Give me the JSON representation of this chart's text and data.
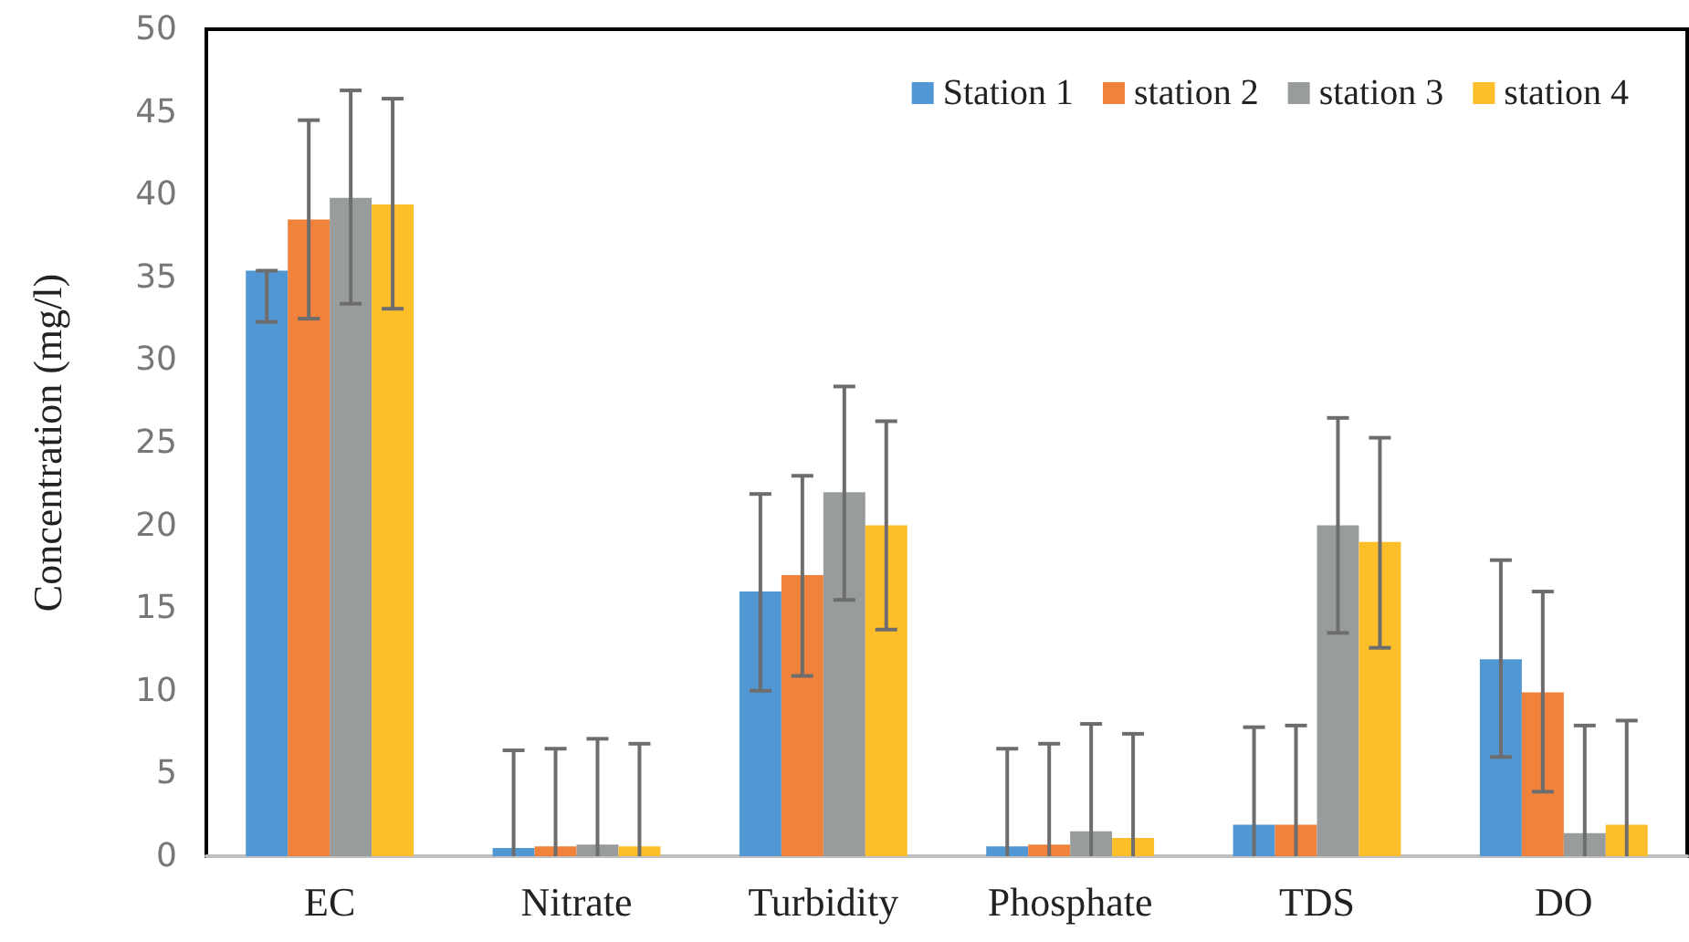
{
  "chart_data": {
    "type": "bar",
    "ylabel": "Concentration (mg/l)",
    "categories": [
      "EC",
      "Nitrate",
      "Turbidity",
      "Phosphate",
      "TDS",
      "DO"
    ],
    "series": [
      {
        "name": "Station 1",
        "color": "#5097d3",
        "values": [
          35.4,
          0.5,
          16.0,
          0.6,
          1.9,
          11.9
        ],
        "errors": [
          [
            32.3,
            35.4
          ],
          [
            0,
            6.4
          ],
          [
            10.0,
            21.9
          ],
          [
            0,
            6.5
          ],
          [
            0,
            7.8
          ],
          [
            6.0,
            17.9
          ]
        ]
      },
      {
        "name": "station 2",
        "color": "#f0823b",
        "values": [
          38.5,
          0.6,
          17.0,
          0.7,
          1.9,
          9.9
        ],
        "errors": [
          [
            32.5,
            44.5
          ],
          [
            0,
            6.5
          ],
          [
            10.9,
            23.0
          ],
          [
            0,
            6.8
          ],
          [
            0,
            7.9
          ],
          [
            3.9,
            16.0
          ]
        ]
      },
      {
        "name": "station 3",
        "color": "#999c9d",
        "values": [
          39.8,
          0.7,
          22.0,
          1.5,
          20.0,
          1.4
        ],
        "errors": [
          [
            33.4,
            46.3
          ],
          [
            0,
            7.1
          ],
          [
            15.5,
            28.4
          ],
          [
            0,
            8.0
          ],
          [
            13.5,
            26.5
          ],
          [
            0,
            7.9
          ]
        ]
      },
      {
        "name": "station 4",
        "color": "#fcbf2a",
        "values": [
          39.4,
          0.6,
          20.0,
          1.1,
          19.0,
          1.9
        ],
        "errors": [
          [
            33.1,
            45.8
          ],
          [
            0,
            6.8
          ],
          [
            13.7,
            26.3
          ],
          [
            0,
            7.4
          ],
          [
            12.6,
            25.3
          ],
          [
            0,
            8.2
          ]
        ]
      }
    ],
    "ylim": [
      0,
      50
    ],
    "yticks": [
      0,
      5,
      10,
      15,
      20,
      25,
      30,
      35,
      40,
      45,
      50
    ],
    "grid": false,
    "legend": "top right"
  }
}
